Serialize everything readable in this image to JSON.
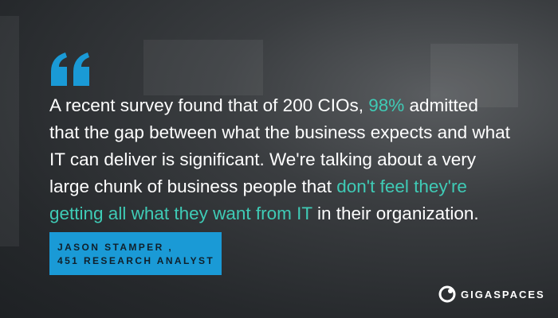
{
  "quote": {
    "lines": [
      [
        {
          "text": "A recent survey found that of 200 CIOs, ",
          "highlight": false
        },
        {
          "text": "98%",
          "highlight": true
        },
        {
          "text": " admitted",
          "highlight": false
        }
      ],
      [
        {
          "text": "that the gap between what the business expects and what",
          "highlight": false
        }
      ],
      [
        {
          "text": "IT can deliver is significant. We're talking about a very",
          "highlight": false
        }
      ],
      [
        {
          "text": "large chunk of business people that ",
          "highlight": false
        },
        {
          "text": "don't feel they're",
          "highlight": true
        }
      ],
      [
        {
          "text": "getting all what they want from IT",
          "highlight": true
        },
        {
          "text": " in their organization.",
          "highlight": false
        }
      ]
    ]
  },
  "attribution": {
    "name": "JASON STAMPER ,",
    "role": "451 RESEARCH ANALYST"
  },
  "logo": {
    "text": "GIGASPACES"
  }
}
